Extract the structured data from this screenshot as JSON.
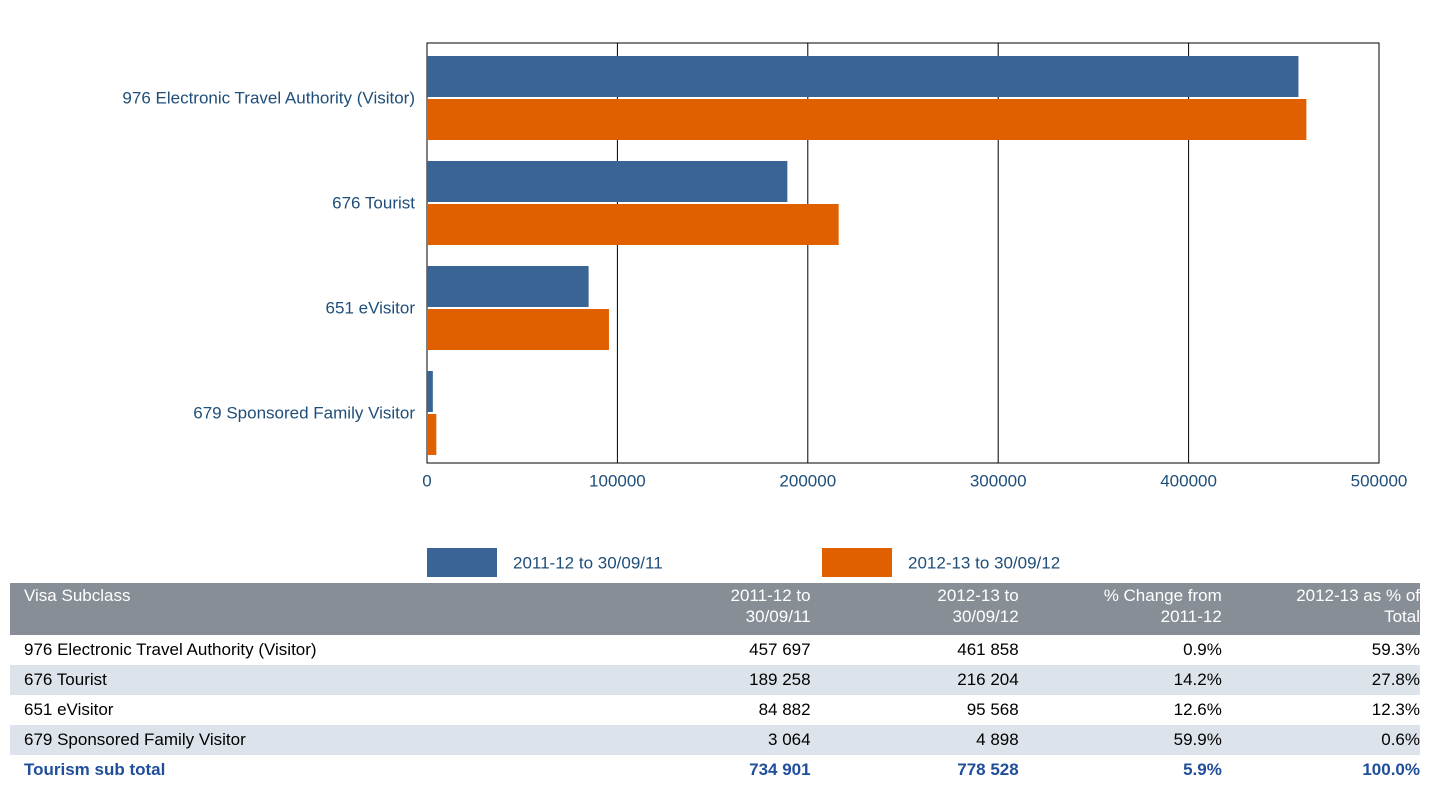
{
  "chart_data": {
    "type": "hbar",
    "categories": [
      "976 Electronic Travel Authority (Visitor)",
      "676 Tourist",
      "651 eVisitor",
      "679 Sponsored Family Visitor"
    ],
    "series": [
      {
        "name": "2011-12 to 30/09/11",
        "color": "#3a6496",
        "values": [
          457697,
          189258,
          84882,
          3064
        ]
      },
      {
        "name": "2012-13 to 30/09/12",
        "color": "#e06000",
        "values": [
          461858,
          216204,
          95568,
          4898
        ]
      }
    ],
    "xlim": [
      0,
      500000
    ],
    "xticks": [
      0,
      100000,
      200000,
      300000,
      400000,
      500000
    ],
    "grid": true,
    "legend": "bottom"
  },
  "table": {
    "header": [
      "Visa Subclass",
      "2011-12 to 30/09/11",
      "2012-13 to 30/09/12",
      "% Change from 2011-12",
      "2012-13 as % of Total"
    ],
    "rows": [
      [
        "976 Electronic Travel Authority (Visitor)",
        "457 697",
        "461 858",
        "0.9%",
        "59.3%"
      ],
      [
        "676 Tourist",
        "189 258",
        "216 204",
        "14.2%",
        "27.8%"
      ],
      [
        "651 eVisitor",
        "84 882",
        "95 568",
        "12.6%",
        "12.3%"
      ],
      [
        "679 Sponsored Family Visitor",
        "3 064",
        "4 898",
        "59.9%",
        "0.6%"
      ]
    ],
    "total": [
      "Tourism sub total",
      "734 901",
      "778 528",
      "5.9%",
      "100.0%"
    ]
  }
}
